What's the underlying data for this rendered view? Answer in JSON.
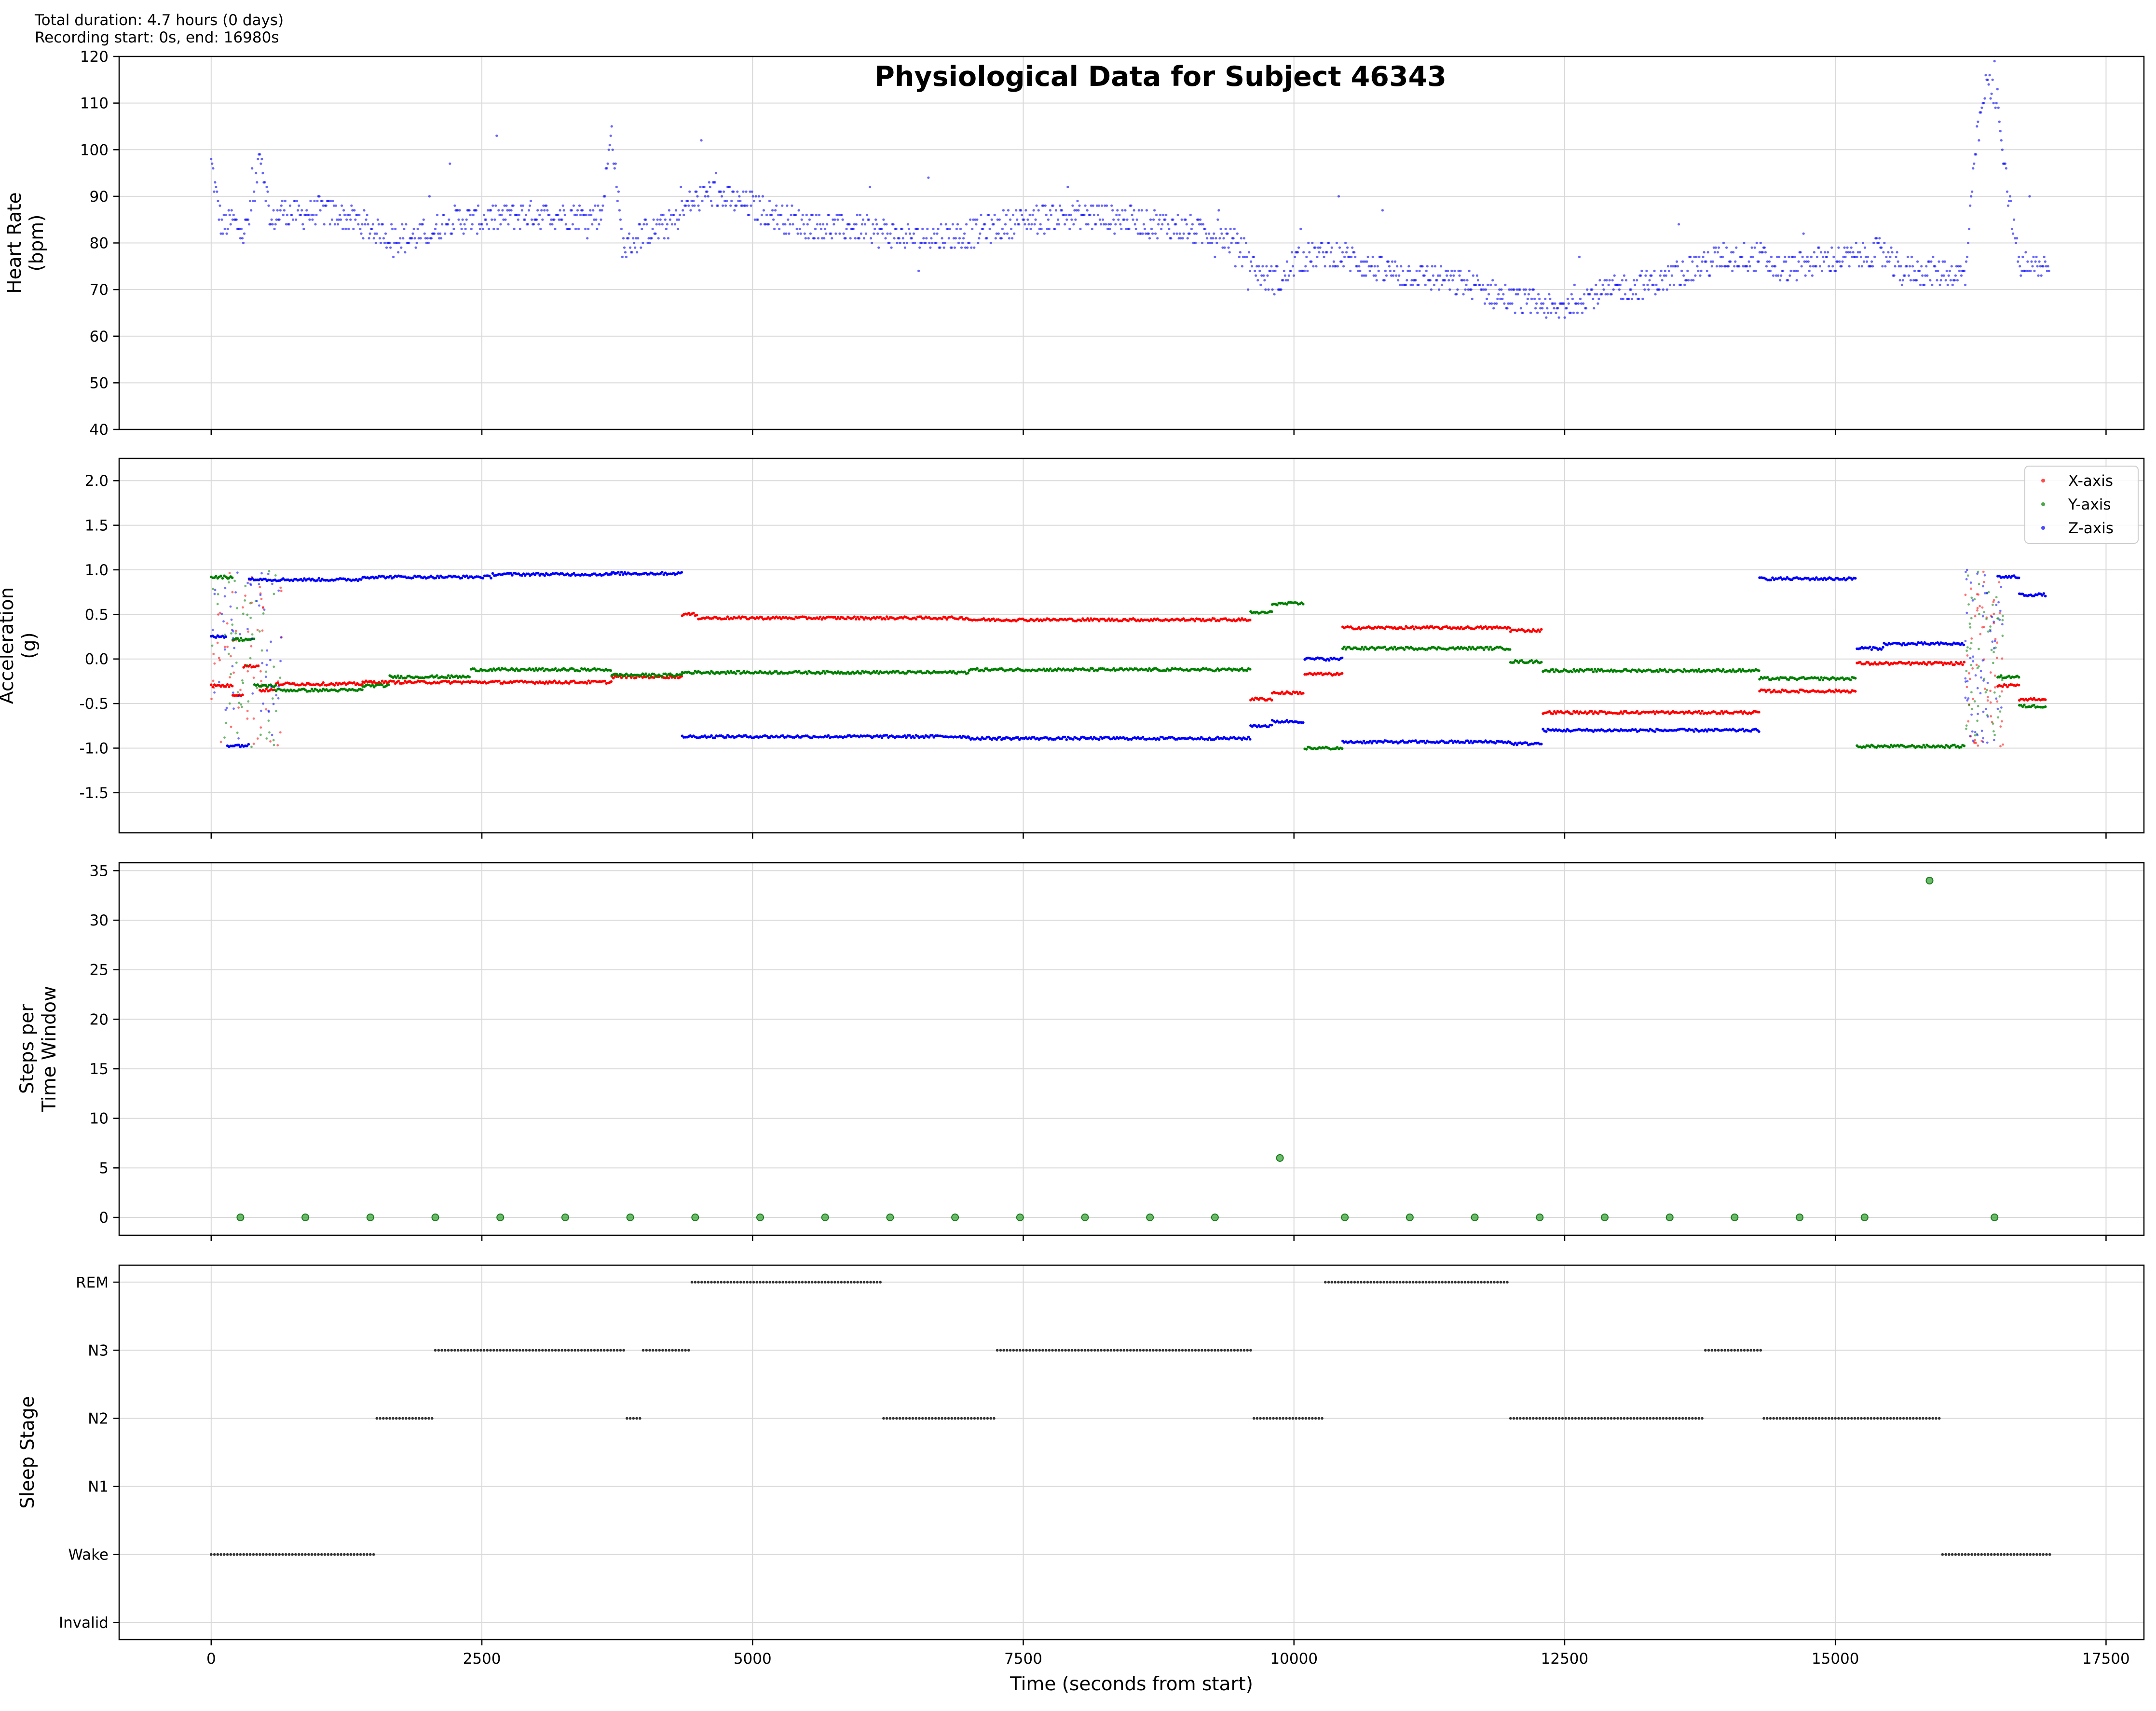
{
  "header": {
    "line1": "Total duration: 4.7 hours (0 days)",
    "line2": "Recording start: 0s, end: 16980s"
  },
  "colors": {
    "hr": "#0000ff",
    "x_axis": "#ff0000",
    "y_axis": "#008000",
    "z_axis": "#0000ff",
    "steps": "#2ca02c",
    "sleep": "#333333",
    "grid": "#d9d9d9"
  },
  "chart_data": [
    {
      "type": "scatter",
      "title": "Physiological Data for Subject 46343",
      "ylabel": "Heart Rate\n(bpm)",
      "xlim": [
        -850,
        17850
      ],
      "ylim": [
        40,
        120
      ],
      "yticks": [
        40,
        50,
        60,
        70,
        80,
        90,
        100,
        110,
        120
      ],
      "grid": true,
      "series": [
        {
          "points": [
            [
              0,
              97
            ],
            [
              100,
              83
            ],
            [
              200,
              85
            ],
            [
              300,
              82
            ],
            [
              400,
              89
            ],
            [
              450,
              101
            ],
            [
              550,
              84
            ],
            [
              650,
              87
            ],
            [
              800,
              86
            ],
            [
              1000,
              87
            ],
            [
              1200,
              86
            ],
            [
              1400,
              84
            ],
            [
              1600,
              82
            ],
            [
              1800,
              81
            ],
            [
              2000,
              82
            ],
            [
              2200,
              85
            ],
            [
              2500,
              85
            ],
            [
              2800,
              86
            ],
            [
              3200,
              86
            ],
            [
              3600,
              86
            ],
            [
              3700,
              104
            ],
            [
              3800,
              79
            ],
            [
              4000,
              82
            ],
            [
              4300,
              85
            ],
            [
              4400,
              88
            ],
            [
              4600,
              91
            ],
            [
              4800,
              89
            ],
            [
              5000,
              88
            ],
            [
              5200,
              86
            ],
            [
              5500,
              84
            ],
            [
              6000,
              83
            ],
            [
              6500,
              81
            ],
            [
              7000,
              82
            ],
            [
              7500,
              85
            ],
            [
              8000,
              86
            ],
            [
              8500,
              85
            ],
            [
              9000,
              83
            ],
            [
              9300,
              82
            ],
            [
              9500,
              79
            ],
            [
              9700,
              73
            ],
            [
              9900,
              72
            ],
            [
              10000,
              76
            ],
            [
              10300,
              78
            ],
            [
              10500,
              77
            ],
            [
              10800,
              74
            ],
            [
              11200,
              73
            ],
            [
              11600,
              71
            ],
            [
              12000,
              68
            ],
            [
              12300,
              67
            ],
            [
              12400,
              65
            ],
            [
              12600,
              68
            ],
            [
              13000,
              70
            ],
            [
              13400,
              72
            ],
            [
              13700,
              75
            ],
            [
              14000,
              77
            ],
            [
              14300,
              77
            ],
            [
              14500,
              74
            ],
            [
              14800,
              76
            ],
            [
              15200,
              77
            ],
            [
              15400,
              78
            ],
            [
              15600,
              74
            ],
            [
              15900,
              74
            ],
            [
              16200,
              73
            ],
            [
              16300,
              101
            ],
            [
              16400,
              115
            ],
            [
              16500,
              110
            ],
            [
              16600,
              90
            ],
            [
              16700,
              75
            ],
            [
              16900,
              75
            ]
          ]
        }
      ]
    },
    {
      "type": "scatter",
      "ylabel": "Acceleration\n(g)",
      "xlim": [
        -850,
        17850
      ],
      "ylim": [
        -1.95,
        2.25
      ],
      "yticks": [
        -1.5,
        -1.0,
        -0.5,
        0.0,
        0.5,
        1.0,
        1.5,
        2.0
      ],
      "grid": true,
      "legend_position": "top-right",
      "series": [
        {
          "name": "X-axis",
          "segments": [
            [
              0,
              200,
              -0.3
            ],
            [
              200,
              300,
              -0.4
            ],
            [
              300,
              450,
              -0.08
            ],
            [
              450,
              600,
              -0.35
            ],
            [
              600,
              1400,
              -0.28
            ],
            [
              1400,
              3700,
              -0.26
            ],
            [
              3700,
              4350,
              -0.2
            ],
            [
              4350,
              4500,
              0.5
            ],
            [
              4500,
              7000,
              0.46
            ],
            [
              7000,
              9600,
              0.44
            ],
            [
              9600,
              9800,
              -0.45
            ],
            [
              9800,
              10100,
              -0.38
            ],
            [
              10100,
              10450,
              -0.17
            ],
            [
              10450,
              12000,
              0.35
            ],
            [
              12000,
              12300,
              0.32
            ],
            [
              12300,
              14300,
              -0.6
            ],
            [
              14300,
              15200,
              -0.36
            ],
            [
              15200,
              16200,
              -0.05
            ],
            [
              16500,
              16700,
              -0.3
            ],
            [
              16700,
              16950,
              -0.45
            ]
          ]
        },
        {
          "name": "Y-axis",
          "segments": [
            [
              0,
              200,
              0.92
            ],
            [
              200,
              400,
              0.22
            ],
            [
              400,
              600,
              -0.3
            ],
            [
              600,
              1400,
              -0.35
            ],
            [
              1400,
              1650,
              -0.3
            ],
            [
              1650,
              2400,
              -0.2
            ],
            [
              2400,
              3700,
              -0.12
            ],
            [
              3700,
              4350,
              -0.18
            ],
            [
              4350,
              7000,
              -0.15
            ],
            [
              7000,
              9600,
              -0.12
            ],
            [
              9600,
              9800,
              0.52
            ],
            [
              9800,
              10100,
              0.62
            ],
            [
              10100,
              10450,
              -1.0
            ],
            [
              10450,
              12000,
              0.12
            ],
            [
              12000,
              12300,
              -0.03
            ],
            [
              12300,
              14300,
              -0.13
            ],
            [
              14300,
              15200,
              -0.22
            ],
            [
              15200,
              16200,
              -0.98
            ],
            [
              16500,
              16700,
              -0.2
            ],
            [
              16700,
              16950,
              -0.53
            ]
          ]
        },
        {
          "name": "Z-axis",
          "segments": [
            [
              0,
              150,
              0.25
            ],
            [
              150,
              350,
              -0.97
            ],
            [
              350,
              500,
              0.9
            ],
            [
              500,
              1400,
              0.89
            ],
            [
              1400,
              2600,
              0.92
            ],
            [
              2600,
              3700,
              0.95
            ],
            [
              3700,
              4350,
              0.96
            ],
            [
              4350,
              7000,
              -0.87
            ],
            [
              7000,
              9600,
              -0.89
            ],
            [
              9600,
              9800,
              -0.75
            ],
            [
              9800,
              10100,
              -0.7
            ],
            [
              10100,
              10450,
              0.0
            ],
            [
              10450,
              12000,
              -0.93
            ],
            [
              12000,
              12300,
              -0.95
            ],
            [
              12300,
              14300,
              -0.8
            ],
            [
              14300,
              15200,
              0.9
            ],
            [
              15200,
              15450,
              0.12
            ],
            [
              15450,
              16200,
              0.17
            ],
            [
              16500,
              16700,
              0.92
            ],
            [
              16700,
              16950,
              0.72
            ]
          ]
        }
      ]
    },
    {
      "type": "scatter",
      "ylabel": "Steps per\nTime Window",
      "xlim": [
        -850,
        17850
      ],
      "ylim": [
        -1.8,
        35.8
      ],
      "yticks": [
        0,
        5,
        10,
        15,
        20,
        25,
        30,
        35
      ],
      "grid": true,
      "series": [
        {
          "points": [
            [
              270,
              0
            ],
            [
              870,
              0
            ],
            [
              1470,
              0
            ],
            [
              2070,
              0
            ],
            [
              2670,
              0
            ],
            [
              3270,
              0
            ],
            [
              3870,
              0
            ],
            [
              4470,
              0
            ],
            [
              5070,
              0
            ],
            [
              5670,
              0
            ],
            [
              6270,
              0
            ],
            [
              6870,
              0
            ],
            [
              7470,
              0
            ],
            [
              8070,
              0
            ],
            [
              8670,
              0
            ],
            [
              9270,
              0
            ],
            [
              9870,
              6
            ],
            [
              10470,
              0
            ],
            [
              11070,
              0
            ],
            [
              11670,
              0
            ],
            [
              12270,
              0
            ],
            [
              12870,
              0
            ],
            [
              13470,
              0
            ],
            [
              14070,
              0
            ],
            [
              14670,
              0
            ],
            [
              15270,
              0
            ],
            [
              15870,
              34
            ],
            [
              16470,
              0
            ]
          ]
        }
      ]
    },
    {
      "type": "scatter",
      "ylabel": "Sleep Stage",
      "xlabel": "Time (seconds from start)",
      "xlim": [
        -850,
        17850
      ],
      "xticks": [
        0,
        2500,
        5000,
        7500,
        10000,
        12500,
        15000,
        17500
      ],
      "stage_labels": [
        "Invalid",
        "Wake",
        "N1",
        "N2",
        "N3",
        "REM"
      ],
      "ylim": [
        -0.25,
        5.25
      ],
      "grid": true,
      "series": [
        {
          "segments": [
            [
              0,
              1530,
              1
            ],
            [
              1530,
              2070,
              3
            ],
            [
              2070,
              3840,
              4
            ],
            [
              3840,
              3990,
              3
            ],
            [
              3990,
              4440,
              4
            ],
            [
              4440,
              6210,
              5
            ],
            [
              6210,
              7260,
              3
            ],
            [
              7260,
              9630,
              4
            ],
            [
              9630,
              10290,
              3
            ],
            [
              10290,
              12000,
              5
            ],
            [
              12000,
              13800,
              3
            ],
            [
              13800,
              14340,
              4
            ],
            [
              14340,
              15990,
              3
            ],
            [
              15990,
              17010,
              1
            ]
          ]
        }
      ]
    }
  ]
}
